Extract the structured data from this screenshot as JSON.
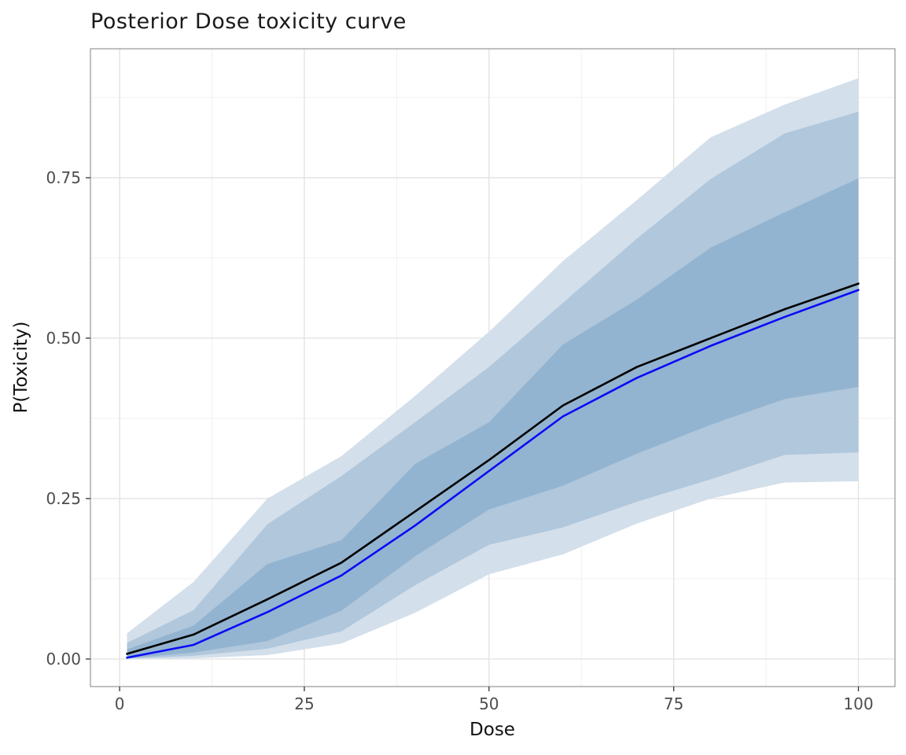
{
  "figure": {
    "title": "Posterior Dose toxicity curve",
    "x_axis_title": "Dose",
    "y_axis_title": "P(Toxicity)"
  },
  "chart_data": {
    "type": "line",
    "title": "Posterior Dose toxicity curve",
    "xlabel": "Dose",
    "ylabel": "P(Toxicity)",
    "x_tick_labels": [
      "0",
      "25",
      "50",
      "75",
      "100"
    ],
    "x_tick_values": [
      0,
      25,
      50,
      75,
      100
    ],
    "y_tick_labels": [
      "0.00",
      "0.25",
      "0.50",
      "0.75"
    ],
    "y_tick_values": [
      0,
      0.25,
      0.5,
      0.75
    ],
    "x_minor_gridlines": [
      12.5,
      37.5,
      62.5,
      87.5
    ],
    "y_minor_gridlines": [
      0.125,
      0.375,
      0.625,
      0.875
    ],
    "xlim": [
      -3.95,
      104.95
    ],
    "ylim": [
      -0.043,
      0.951
    ],
    "grid": "on",
    "legend": "none",
    "x": [
      1,
      10,
      20,
      30,
      40,
      50,
      60,
      70,
      80,
      90,
      100
    ],
    "ribbons": [
      {
        "name": "outer-credible-band",
        "color": "#d3dfeb",
        "upper": [
          0.04,
          0.12,
          0.25,
          0.316,
          0.41,
          0.51,
          0.62,
          0.715,
          0.813,
          0.864,
          0.905
        ],
        "lower": [
          0.0,
          0.001,
          0.006,
          0.024,
          0.072,
          0.132,
          0.163,
          0.211,
          0.25,
          0.275,
          0.277
        ]
      },
      {
        "name": "middle-credible-band",
        "color": "#b0c7dc",
        "upper": [
          0.025,
          0.076,
          0.21,
          0.285,
          0.369,
          0.455,
          0.555,
          0.655,
          0.748,
          0.819,
          0.853
        ],
        "lower": [
          0.0005,
          0.005,
          0.016,
          0.043,
          0.115,
          0.178,
          0.205,
          0.245,
          0.28,
          0.318,
          0.322
        ]
      },
      {
        "name": "inner-credible-band",
        "color": "#93b4d0",
        "upper": [
          0.015,
          0.052,
          0.148,
          0.185,
          0.304,
          0.369,
          0.49,
          0.56,
          0.641,
          0.696,
          0.749
        ],
        "lower": [
          0.001,
          0.01,
          0.028,
          0.075,
          0.16,
          0.233,
          0.27,
          0.32,
          0.365,
          0.405,
          0.424
        ]
      }
    ],
    "lines": [
      {
        "name": "posterior-mean-line",
        "color": "#000000",
        "width": 2.6,
        "values": [
          0.008,
          0.038,
          0.093,
          0.15,
          0.23,
          0.31,
          0.395,
          0.455,
          0.5,
          0.545,
          0.585
        ]
      },
      {
        "name": "posterior-median-line",
        "color": "#0b0bf7",
        "width": 2.6,
        "values": [
          0.002,
          0.022,
          0.073,
          0.13,
          0.208,
          0.293,
          0.378,
          0.438,
          0.488,
          0.533,
          0.575
        ]
      }
    ],
    "panel": {
      "background": "#ffffff",
      "border_color": "#9e9e9e",
      "major_grid_color": "#e3e3e3",
      "minor_grid_color": "#f0f0f0",
      "tick_color": "#333333",
      "tick_label_color": "#4d4d4d"
    }
  }
}
